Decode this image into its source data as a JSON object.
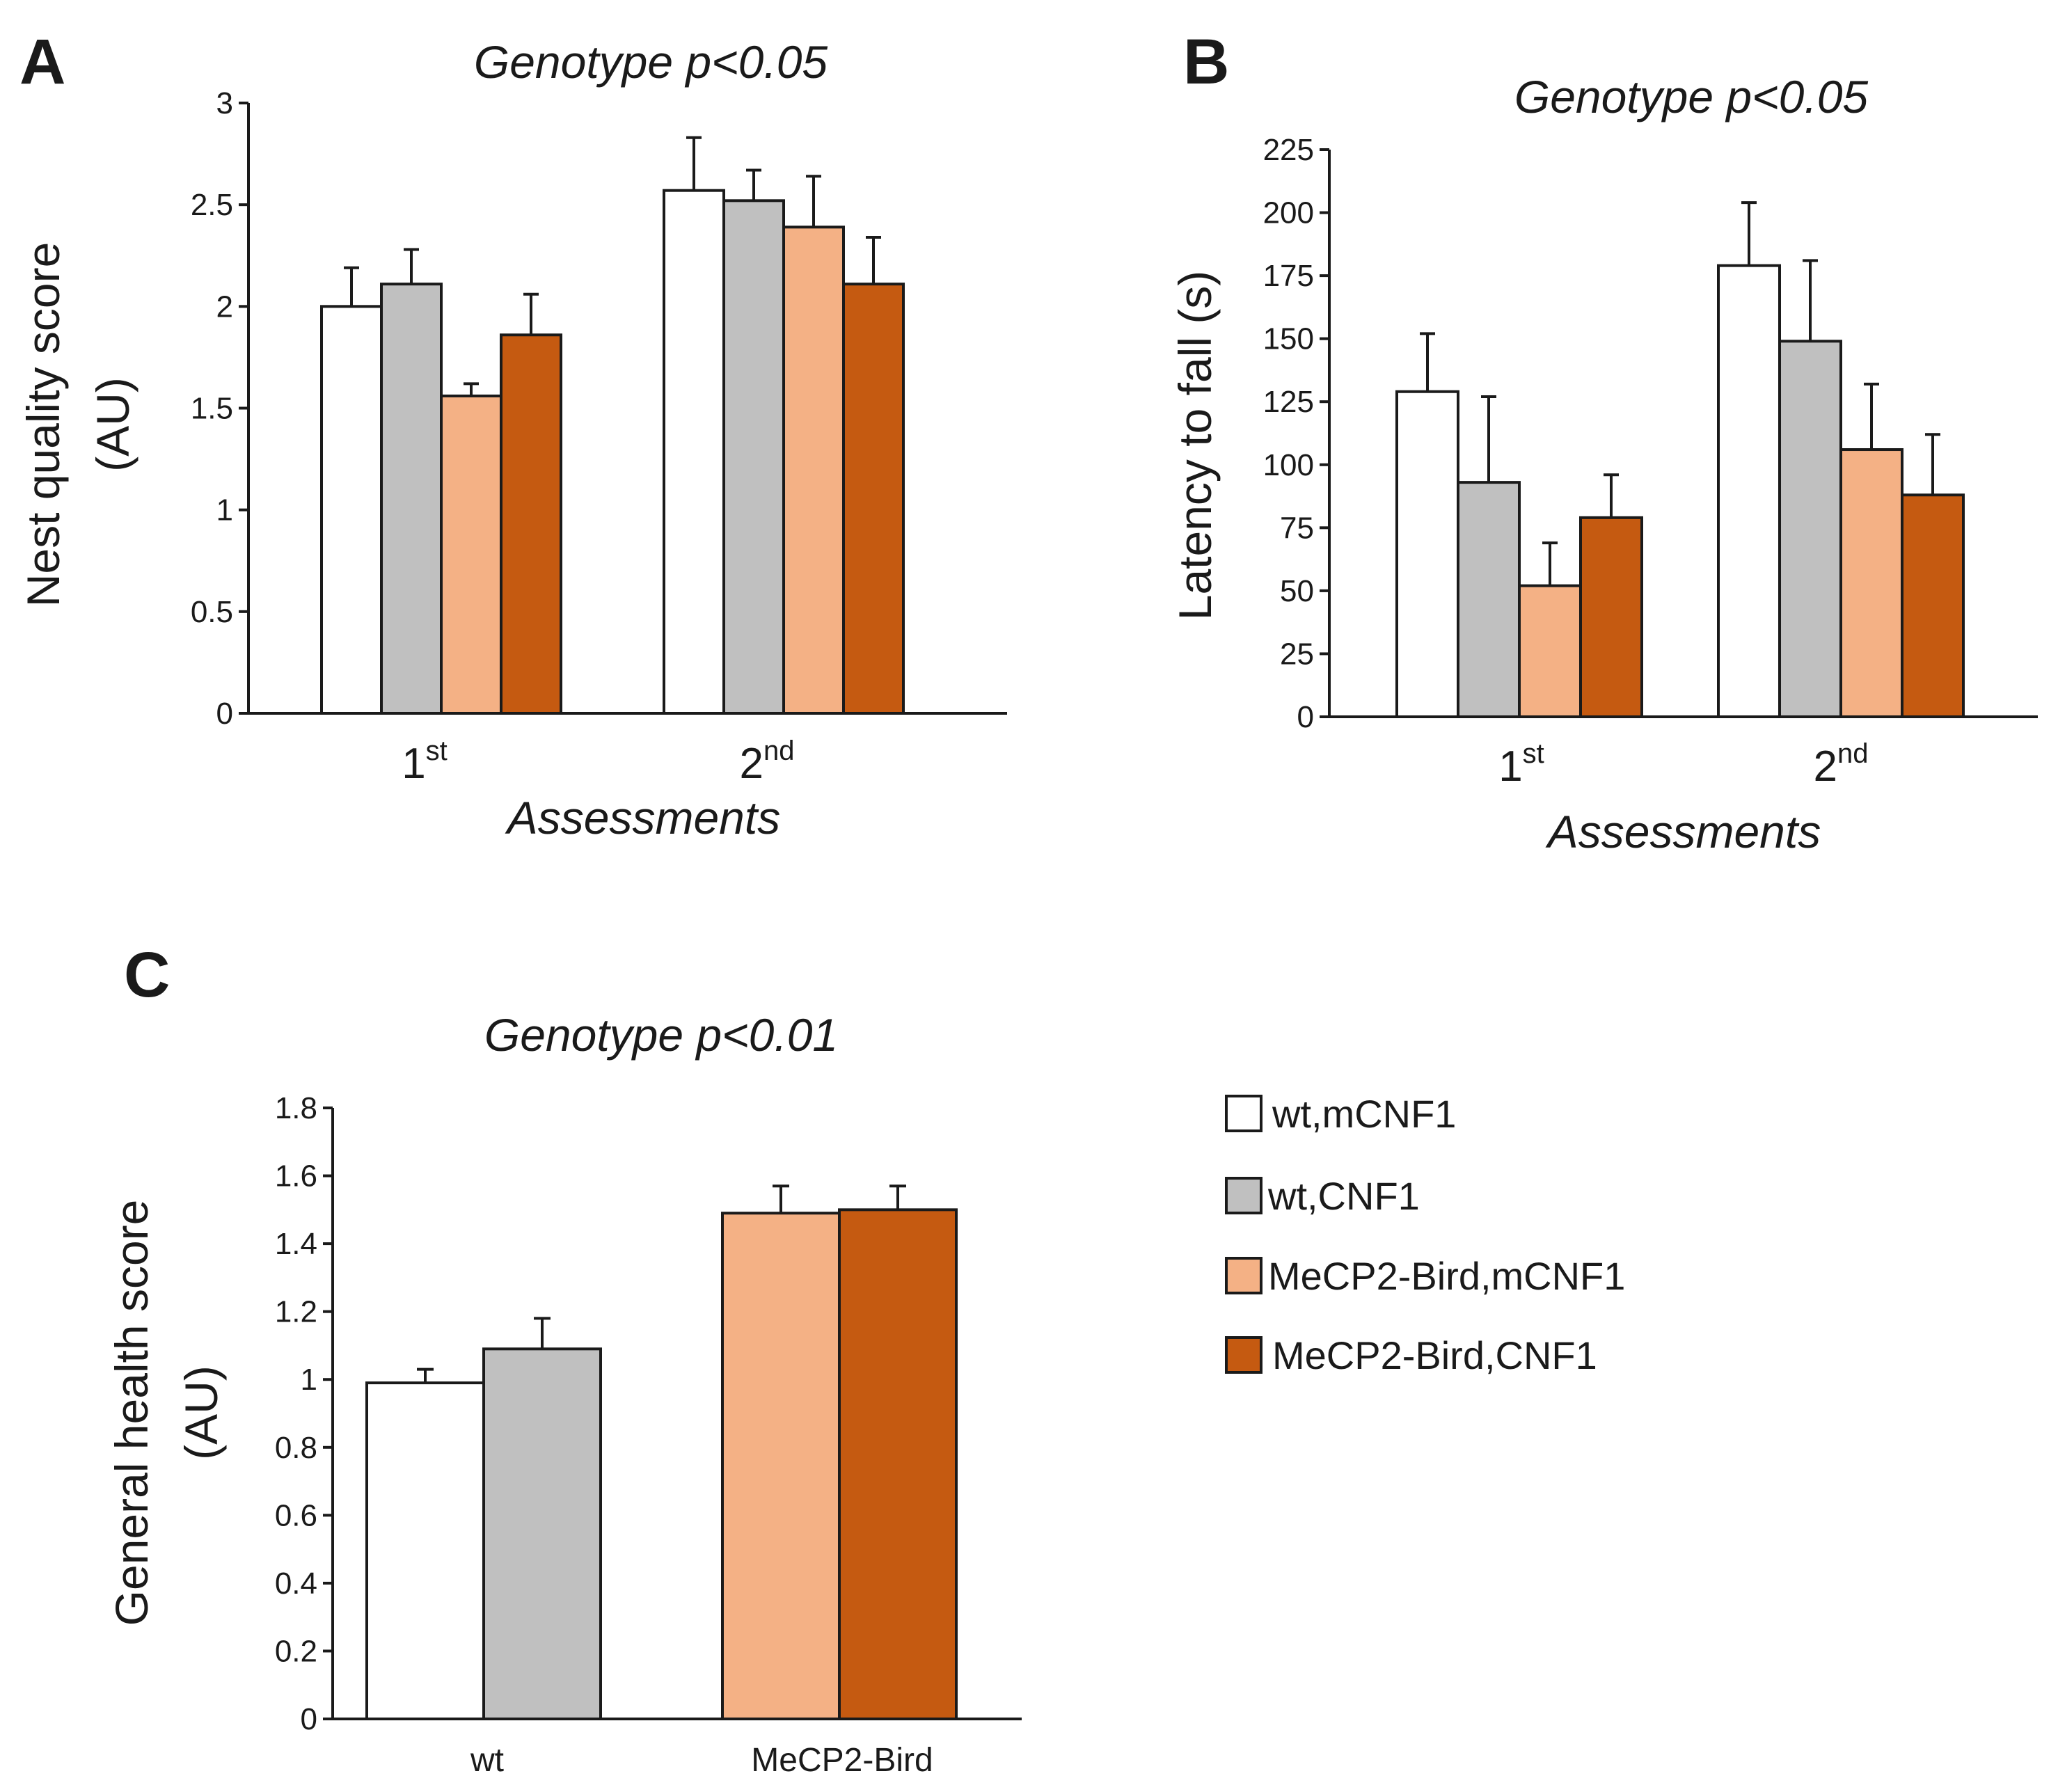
{
  "panels": {
    "A": {
      "letter": "A"
    },
    "B": {
      "letter": "B"
    },
    "C": {
      "letter": "C"
    }
  },
  "legend": [
    {
      "label": "wt,mCNF1",
      "color": "#ffffff"
    },
    {
      "label": "wt,CNF1",
      "color": "#c0c0c0"
    },
    {
      "label": "MeCP2-Bird,mCNF1",
      "color": "#f4b185"
    },
    {
      "label": "MeCP2-Bird,CNF1",
      "color": "#c55a11"
    }
  ],
  "chart_data": [
    {
      "id": "A",
      "type": "bar",
      "title": "Genotype p<0.05",
      "xlabel": "Assessments",
      "ylabel": [
        "Nest quality score",
        "(AU)"
      ],
      "categories": [
        {
          "main": "1",
          "sup": "st"
        },
        {
          "main": "2",
          "sup": "nd"
        }
      ],
      "ylim": [
        0,
        3
      ],
      "yticks": [
        "0",
        "0.5",
        "1",
        "1.5",
        "2",
        "2.5",
        "3"
      ],
      "series": [
        {
          "name": "wt,mCNF1",
          "values": [
            2.0,
            2.57
          ],
          "errors": [
            0.19,
            0.26
          ]
        },
        {
          "name": "wt,CNF1",
          "values": [
            2.11,
            2.52
          ],
          "errors": [
            0.17,
            0.15
          ]
        },
        {
          "name": "MeCP2-Bird,mCNF1",
          "values": [
            1.56,
            2.39
          ],
          "errors": [
            0.06,
            0.25
          ]
        },
        {
          "name": "MeCP2-Bird,CNF1",
          "values": [
            1.86,
            2.11
          ],
          "errors": [
            0.2,
            0.23
          ]
        }
      ]
    },
    {
      "id": "B",
      "type": "bar",
      "title": "Genotype p<0.05",
      "xlabel": "Assessments",
      "ylabel": [
        "Latency to fall (s)"
      ],
      "categories": [
        {
          "main": "1",
          "sup": "st"
        },
        {
          "main": "2",
          "sup": "nd"
        }
      ],
      "ylim": [
        0,
        225
      ],
      "yticks": [
        "0",
        "25",
        "50",
        "75",
        "100",
        "125",
        "150",
        "175",
        "200",
        "225"
      ],
      "series": [
        {
          "name": "wt,mCNF1",
          "values": [
            129,
            179
          ],
          "errors": [
            23,
            25
          ]
        },
        {
          "name": "wt,CNF1",
          "values": [
            93,
            149
          ],
          "errors": [
            34,
            32
          ]
        },
        {
          "name": "MeCP2-Bird,mCNF1",
          "values": [
            52,
            106
          ],
          "errors": [
            17,
            26
          ]
        },
        {
          "name": "MeCP2-Bird,CNF1",
          "values": [
            79,
            88
          ],
          "errors": [
            17,
            24
          ]
        }
      ]
    },
    {
      "id": "C",
      "type": "bar",
      "title": "Genotype p<0.01",
      "xlabel": "",
      "ylabel": [
        "General health score",
        "(AU)"
      ],
      "categories": [
        {
          "main": "wt",
          "sup": ""
        },
        {
          "main": "MeCP2-Bird",
          "sup": ""
        }
      ],
      "ylim": [
        0,
        1.8
      ],
      "yticks": [
        "0",
        "0.2",
        "0.4",
        "0.6",
        "0.8",
        "1",
        "1.2",
        "1.4",
        "1.6",
        "1.8"
      ],
      "groups": [
        {
          "category": "wt",
          "bars": [
            {
              "name": "wt,mCNF1",
              "value": 0.99,
              "error": 0.04
            },
            {
              "name": "wt,CNF1",
              "value": 1.09,
              "error": 0.09
            }
          ]
        },
        {
          "category": "MeCP2-Bird",
          "bars": [
            {
              "name": "MeCP2-Bird,mCNF1",
              "value": 1.49,
              "error": 0.08
            },
            {
              "name": "MeCP2-Bird,CNF1",
              "value": 1.5,
              "error": 0.07
            }
          ]
        }
      ]
    }
  ]
}
